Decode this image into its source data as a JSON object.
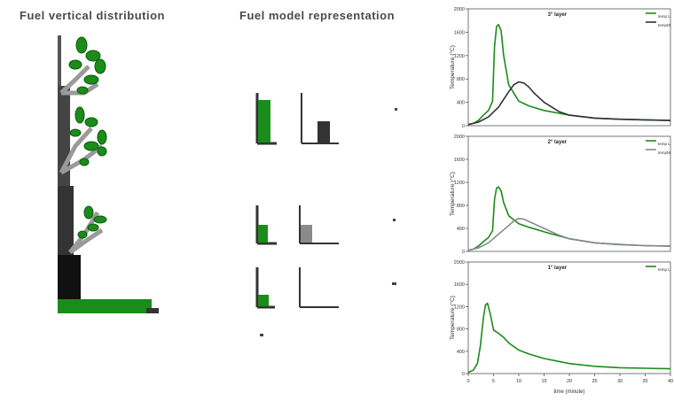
{
  "headings": {
    "left": "Fuel vertical distribution",
    "middle": "Fuel model representation"
  },
  "colors": {
    "green": "#1a8c1a",
    "dark": "#333333",
    "gray": "#8a8a8a",
    "black": "#111111"
  },
  "chart_data": [
    {
      "type": "line",
      "title": "3° layer",
      "ylabel": "Temperature (°C)",
      "xlabel": "",
      "xlim": [
        0,
        40
      ],
      "ylim": [
        0,
        2000
      ],
      "yticks": [
        "0",
        "400",
        "800",
        "1200",
        "1600",
        "2000"
      ],
      "legend_position": "top-right",
      "series": [
        {
          "name": "temp L",
          "color": "#1a8c1a",
          "x": [
            0,
            1,
            2,
            3,
            4,
            4.8,
            5.2,
            5.6,
            6,
            6.5,
            7,
            8,
            10,
            12,
            15,
            20,
            25,
            30,
            35,
            40
          ],
          "y": [
            20,
            40,
            90,
            180,
            260,
            420,
            1350,
            1700,
            1730,
            1620,
            1200,
            700,
            420,
            340,
            260,
            180,
            130,
            110,
            100,
            90
          ]
        },
        {
          "name": "tempM",
          "color": "#333333",
          "x": [
            0,
            2,
            4,
            6,
            8,
            9,
            10,
            11,
            12,
            13,
            15,
            18,
            20,
            25,
            30,
            35,
            40
          ],
          "y": [
            20,
            60,
            150,
            320,
            580,
            700,
            750,
            730,
            660,
            560,
            400,
            240,
            180,
            130,
            110,
            100,
            90
          ]
        }
      ]
    },
    {
      "type": "line",
      "title": "2° layer",
      "ylabel": "Temperature (°C)",
      "xlabel": "",
      "xlim": [
        0,
        40
      ],
      "ylim": [
        0,
        2000
      ],
      "yticks": [
        "0",
        "400",
        "800",
        "1200",
        "1600",
        "2000"
      ],
      "legend_position": "top-right",
      "series": [
        {
          "name": "temp L",
          "color": "#1a8c1a",
          "x": [
            0,
            1,
            2,
            3,
            4,
            4.8,
            5.2,
            5.6,
            6,
            6.5,
            7,
            8,
            10,
            12,
            15,
            20,
            25,
            30,
            35,
            40
          ],
          "y": [
            20,
            40,
            90,
            170,
            240,
            360,
            900,
            1100,
            1120,
            1050,
            850,
            620,
            480,
            420,
            340,
            220,
            150,
            120,
            100,
            90
          ]
        },
        {
          "name": "tempM",
          "color": "#8a8a8a",
          "x": [
            0,
            2,
            4,
            6,
            8,
            9,
            10,
            11,
            12,
            15,
            18,
            20,
            25,
            30,
            35,
            40
          ],
          "y": [
            20,
            60,
            150,
            300,
            450,
            530,
            570,
            560,
            520,
            400,
            280,
            220,
            150,
            115,
            100,
            90
          ]
        }
      ]
    },
    {
      "type": "line",
      "title": "1° layer",
      "ylabel": "Temperature (°C)",
      "xlabel": "time (minute)",
      "xlim": [
        0,
        40
      ],
      "ylim": [
        0,
        2000
      ],
      "xticks": [
        "0",
        "5",
        "10",
        "15",
        "20",
        "25",
        "30",
        "35",
        "40"
      ],
      "yticks": [
        "0",
        "400",
        "800",
        "1200",
        "1600",
        "2000"
      ],
      "legend_position": "top-right",
      "series": [
        {
          "name": "temp L",
          "color": "#1a8c1a",
          "x": [
            0,
            1,
            1.8,
            2.4,
            3,
            3.4,
            3.8,
            4.4,
            5,
            6,
            7,
            8,
            10,
            12,
            15,
            20,
            25,
            30,
            35,
            40
          ],
          "y": [
            20,
            60,
            180,
            500,
            1000,
            1230,
            1260,
            1050,
            780,
            720,
            650,
            550,
            420,
            350,
            270,
            180,
            130,
            105,
            95,
            85
          ]
        }
      ]
    }
  ]
}
